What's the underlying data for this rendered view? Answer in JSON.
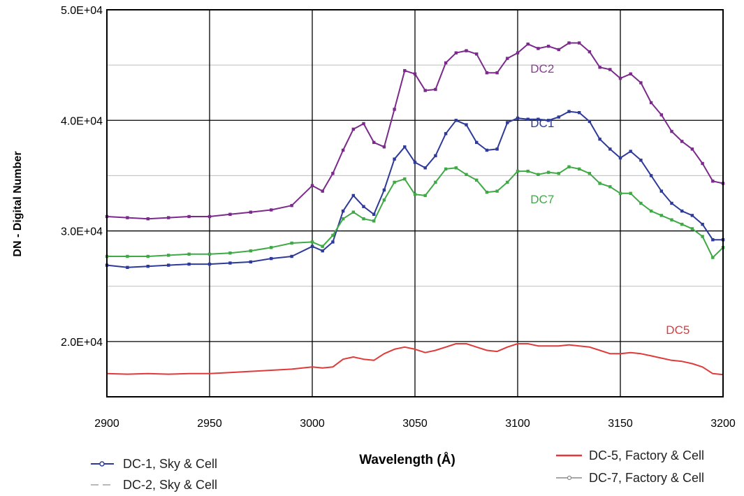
{
  "chart_data": {
    "type": "line",
    "xlabel": "Wavelength (Å)",
    "ylabel": "DN - Digital Number",
    "xlim": [
      2900,
      3200
    ],
    "ylim": [
      15000,
      50000
    ],
    "x_ticks": [
      2900,
      2950,
      3000,
      3050,
      3100,
      3150,
      3200
    ],
    "y_ticks": [
      {
        "value": 20000,
        "label": "2.0E+04"
      },
      {
        "value": 30000,
        "label": "3.0E+04"
      },
      {
        "value": 40000,
        "label": "4.0E+04"
      },
      {
        "value": 50000,
        "label": "5.0E+04"
      }
    ],
    "grid": {
      "major": true,
      "minor_horizontal": true
    },
    "x": [
      2900,
      2910,
      2920,
      2930,
      2940,
      2950,
      2960,
      2970,
      2980,
      2990,
      3000,
      3005,
      3010,
      3015,
      3020,
      3025,
      3030,
      3035,
      3040,
      3045,
      3050,
      3055,
      3060,
      3065,
      3070,
      3075,
      3080,
      3085,
      3090,
      3095,
      3100,
      3105,
      3110,
      3115,
      3120,
      3125,
      3130,
      3135,
      3140,
      3145,
      3150,
      3155,
      3160,
      3165,
      3170,
      3175,
      3180,
      3185,
      3190,
      3195,
      3200
    ],
    "series": [
      {
        "name": "DC2",
        "color": "#7b2a8c",
        "values": [
          31300,
          31200,
          31100,
          31200,
          31300,
          31300,
          31500,
          31700,
          31900,
          32300,
          34100,
          33600,
          35200,
          37300,
          39200,
          39700,
          38000,
          37600,
          41000,
          44500,
          44200,
          42700,
          42800,
          45200,
          46100,
          46300,
          46000,
          44300,
          44300,
          45600,
          46100,
          46900,
          46500,
          46700,
          46400,
          47000,
          47000,
          46200,
          44800,
          44600,
          43800,
          44200,
          43400,
          41600,
          40500,
          39000,
          38100,
          37400,
          36100,
          34500,
          34300
        ]
      },
      {
        "name": "DC1",
        "color": "#2e3a99",
        "values": [
          26900,
          26700,
          26800,
          26900,
          27000,
          27000,
          27100,
          27200,
          27500,
          27700,
          28600,
          28200,
          29000,
          31800,
          33200,
          32200,
          31500,
          33700,
          36500,
          37600,
          36200,
          35700,
          36800,
          38800,
          40000,
          39600,
          38000,
          37300,
          37400,
          39800,
          40200,
          40100,
          40100,
          40000,
          40300,
          40800,
          40700,
          39900,
          38300,
          37400,
          36600,
          37200,
          36400,
          35000,
          33600,
          32500,
          31800,
          31400,
          30600,
          29200,
          29200
        ]
      },
      {
        "name": "DC7",
        "color": "#3faa45",
        "values": [
          27700,
          27700,
          27700,
          27800,
          27900,
          27900,
          28000,
          28200,
          28500,
          28900,
          29000,
          28600,
          29600,
          31100,
          31700,
          31100,
          30900,
          32800,
          34400,
          34700,
          33300,
          33200,
          34400,
          35600,
          35700,
          35100,
          34600,
          33500,
          33600,
          34400,
          35400,
          35400,
          35100,
          35300,
          35200,
          35800,
          35600,
          35200,
          34300,
          34000,
          33400,
          33400,
          32500,
          31800,
          31400,
          31000,
          30600,
          30200,
          29500,
          27600,
          28500
        ]
      },
      {
        "name": "DC5",
        "color": "#e03a3a",
        "values": [
          17100,
          17050,
          17100,
          17050,
          17100,
          17100,
          17200,
          17300,
          17400,
          17500,
          17700,
          17600,
          17700,
          18400,
          18600,
          18400,
          18300,
          18900,
          19300,
          19500,
          19300,
          19000,
          19200,
          19500,
          19800,
          19800,
          19500,
          19200,
          19100,
          19500,
          19800,
          19800,
          19600,
          19600,
          19600,
          19700,
          19600,
          19500,
          19200,
          18900,
          18900,
          19000,
          18900,
          18700,
          18500,
          18300,
          18200,
          18000,
          17700,
          17100,
          17000
        ]
      }
    ],
    "annotations": [
      {
        "text": "DC2",
        "x": 3112,
        "y": 44300,
        "color": "#8c3a98"
      },
      {
        "text": "DC1",
        "x": 3112,
        "y": 39400,
        "color": "#2e3a99"
      },
      {
        "text": "DC7",
        "x": 3112,
        "y": 32500,
        "color": "#3faa45"
      },
      {
        "text": "DC5",
        "x": 3178,
        "y": 20700,
        "color": "#e03a3a"
      }
    ],
    "legend": {
      "placement": "bottom",
      "left": [
        {
          "label": "DC-1, Sky & Cell",
          "color": "#2e3a99",
          "style": "line-with-marker"
        },
        {
          "label": "DC-2, Sky & Cell",
          "color": "#b9b9b9",
          "style": "dashed"
        }
      ],
      "right": [
        {
          "label": "DC-5, Factory & Cell",
          "color": "#e03a3a",
          "style": "solid"
        },
        {
          "label": "DC-7, Factory & Cell",
          "color": "#8a8a8a",
          "style": "line-with-marker"
        }
      ]
    }
  }
}
